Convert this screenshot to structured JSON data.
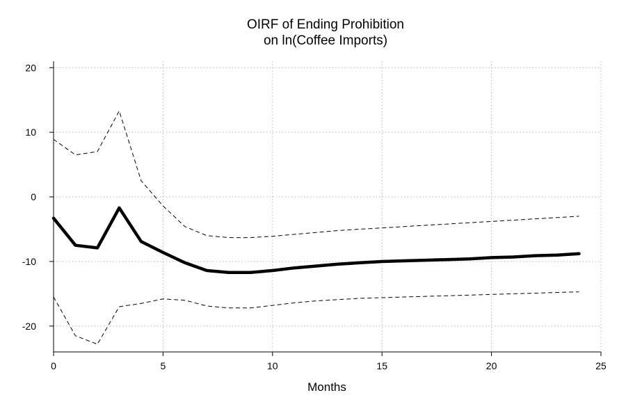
{
  "chart_data": {
    "type": "line",
    "title": [
      "OIRF of Ending Prohibition",
      "on ln(Coffee Imports)"
    ],
    "xlabel": "Months",
    "ylabel": "",
    "xlim": [
      0,
      25
    ],
    "ylim": [
      -24,
      21
    ],
    "xticks": [
      0,
      5,
      10,
      15,
      20,
      25
    ],
    "yticks": [
      -20,
      -10,
      0,
      10,
      20
    ],
    "grid": true,
    "legend": "none",
    "x": [
      0,
      1,
      2,
      3,
      4,
      5,
      6,
      7,
      8,
      9,
      10,
      11,
      12,
      13,
      14,
      15,
      16,
      17,
      18,
      19,
      20,
      21,
      22,
      23,
      24
    ],
    "series": [
      {
        "name": "oirf",
        "style": "solid-thick",
        "color": "#000000",
        "values": [
          -3.3,
          -7.5,
          -7.9,
          -1.7,
          -6.9,
          -8.6,
          -10.2,
          -11.4,
          -11.7,
          -11.7,
          -11.4,
          -11.0,
          -10.7,
          -10.4,
          -10.2,
          -10.0,
          -9.9,
          -9.8,
          -9.7,
          -9.6,
          -9.4,
          -9.3,
          -9.1,
          -9.0,
          -8.8
        ]
      },
      {
        "name": "upper-ci",
        "style": "dashed",
        "color": "#000000",
        "values": [
          8.9,
          6.5,
          7.0,
          13.3,
          2.5,
          -1.4,
          -4.6,
          -6.0,
          -6.3,
          -6.3,
          -6.1,
          -5.8,
          -5.5,
          -5.2,
          -5.0,
          -4.8,
          -4.6,
          -4.4,
          -4.2,
          -4.0,
          -3.8,
          -3.6,
          -3.4,
          -3.2,
          -3.0
        ]
      },
      {
        "name": "lower-ci",
        "style": "dashed",
        "color": "#000000",
        "values": [
          -15.5,
          -21.5,
          -22.8,
          -17.0,
          -16.5,
          -15.8,
          -16.0,
          -16.9,
          -17.2,
          -17.2,
          -16.8,
          -16.4,
          -16.1,
          -15.9,
          -15.7,
          -15.6,
          -15.5,
          -15.4,
          -15.3,
          -15.2,
          -15.1,
          -15.0,
          -14.9,
          -14.8,
          -14.7
        ]
      }
    ]
  }
}
